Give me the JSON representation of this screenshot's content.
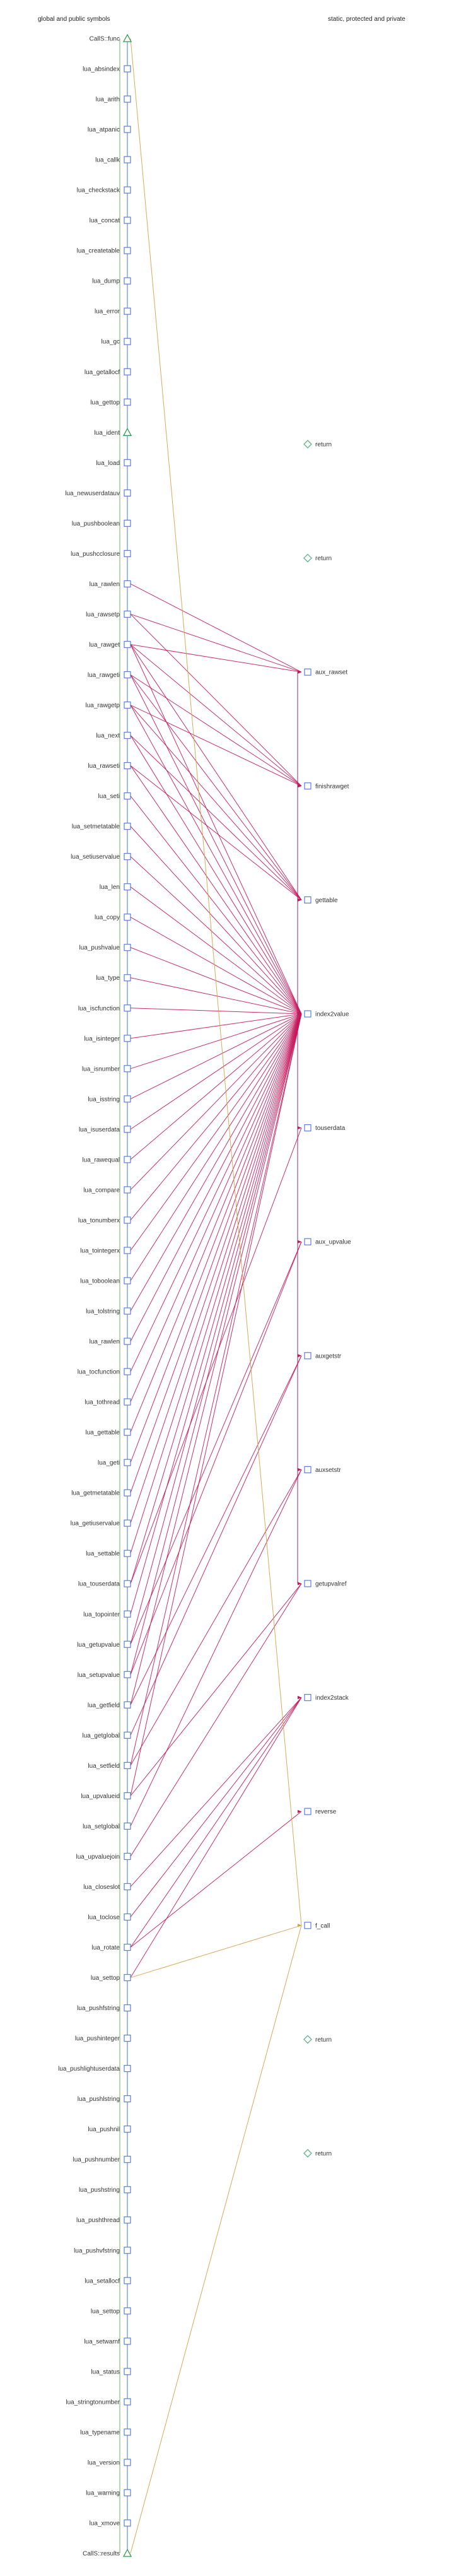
{
  "headers": {
    "left": "global and public symbols",
    "right": "static, protected and private"
  },
  "colors": {
    "edge_local": "#c2185b",
    "edge_call": "#d4a04a",
    "node_box": "#5b7fd6",
    "triangle": "#2e9d4a",
    "diamond": "#5fb48a",
    "spine": "#3a7bd5",
    "guide": "#b7d9b0",
    "bracket": "#a64d8c"
  },
  "left_nodes": [
    {
      "label": "CallS::func",
      "marker": "triangle"
    },
    {
      "label": "lua_absindex",
      "marker": "box"
    },
    {
      "label": "lua_arith",
      "marker": "box"
    },
    {
      "label": "lua_atpanic",
      "marker": "box"
    },
    {
      "label": "lua_callk",
      "marker": "box"
    },
    {
      "label": "lua_checkstack",
      "marker": "box"
    },
    {
      "label": "lua_concat",
      "marker": "box"
    },
    {
      "label": "lua_createtable",
      "marker": "box"
    },
    {
      "label": "lua_dump",
      "marker": "box"
    },
    {
      "label": "lua_error",
      "marker": "box"
    },
    {
      "label": "lua_gc",
      "marker": "box"
    },
    {
      "label": "lua_getallocf",
      "marker": "box"
    },
    {
      "label": "lua_gettop",
      "marker": "box"
    },
    {
      "label": "lua_ident",
      "marker": "triangle"
    },
    {
      "label": "lua_load",
      "marker": "box"
    },
    {
      "label": "lua_newuserdatauv",
      "marker": "box"
    },
    {
      "label": "lua_pushboolean",
      "marker": "box"
    },
    {
      "label": "lua_pushcclosure",
      "marker": "box"
    },
    {
      "label": "lua_rawlen",
      "marker": "box"
    },
    {
      "label": "lua_rawsetp",
      "marker": "box"
    },
    {
      "label": "lua_rawget",
      "marker": "box"
    },
    {
      "label": "lua_rawgeti",
      "marker": "box"
    },
    {
      "label": "lua_rawgetp",
      "marker": "box"
    },
    {
      "label": "lua_next",
      "marker": "box"
    },
    {
      "label": "lua_rawseti",
      "marker": "box"
    },
    {
      "label": "lua_seti",
      "marker": "box"
    },
    {
      "label": "lua_setmetatable",
      "marker": "box"
    },
    {
      "label": "lua_setiuservalue",
      "marker": "box"
    },
    {
      "label": "lua_len",
      "marker": "box"
    },
    {
      "label": "lua_copy",
      "marker": "box"
    },
    {
      "label": "lua_pushvalue",
      "marker": "box"
    },
    {
      "label": "lua_type",
      "marker": "box"
    },
    {
      "label": "lua_iscfunction",
      "marker": "box"
    },
    {
      "label": "lua_isinteger",
      "marker": "box"
    },
    {
      "label": "lua_isnumber",
      "marker": "box"
    },
    {
      "label": "lua_isstring",
      "marker": "box"
    },
    {
      "label": "lua_isuserdata",
      "marker": "box"
    },
    {
      "label": "lua_rawequal",
      "marker": "box"
    },
    {
      "label": "lua_compare",
      "marker": "box"
    },
    {
      "label": "lua_tonumberx",
      "marker": "box"
    },
    {
      "label": "lua_tointegerx",
      "marker": "box"
    },
    {
      "label": "lua_toboolean",
      "marker": "box"
    },
    {
      "label": "lua_tolstring",
      "marker": "box"
    },
    {
      "label": "lua_rawlen",
      "marker": "box"
    },
    {
      "label": "lua_tocfunction",
      "marker": "box"
    },
    {
      "label": "lua_tothread",
      "marker": "box"
    },
    {
      "label": "lua_gettable",
      "marker": "box"
    },
    {
      "label": "lua_geti",
      "marker": "box"
    },
    {
      "label": "lua_getmetatable",
      "marker": "box"
    },
    {
      "label": "lua_getiuservalue",
      "marker": "box"
    },
    {
      "label": "lua_settable",
      "marker": "box"
    },
    {
      "label": "lua_touserdata",
      "marker": "box"
    },
    {
      "label": "lua_topointer",
      "marker": "box"
    },
    {
      "label": "lua_getupvalue",
      "marker": "box"
    },
    {
      "label": "lua_setupvalue",
      "marker": "box"
    },
    {
      "label": "lua_getfield",
      "marker": "box"
    },
    {
      "label": "lua_getglobal",
      "marker": "box"
    },
    {
      "label": "lua_setfield",
      "marker": "box"
    },
    {
      "label": "lua_upvalueid",
      "marker": "box"
    },
    {
      "label": "lua_setglobal",
      "marker": "box"
    },
    {
      "label": "lua_upvaluejoin",
      "marker": "box"
    },
    {
      "label": "lua_closeslot",
      "marker": "box"
    },
    {
      "label": "lua_toclose",
      "marker": "box"
    },
    {
      "label": "lua_rotate",
      "marker": "box"
    },
    {
      "label": "lua_settop",
      "marker": "box"
    },
    {
      "label": "lua_pushfstring",
      "marker": "box"
    },
    {
      "label": "lua_pushinteger",
      "marker": "box"
    },
    {
      "label": "lua_pushlightuserdata",
      "marker": "box"
    },
    {
      "label": "lua_pushlstring",
      "marker": "box"
    },
    {
      "label": "lua_pushnil",
      "marker": "box"
    },
    {
      "label": "lua_pushnumber",
      "marker": "box"
    },
    {
      "label": "lua_pushstring",
      "marker": "box"
    },
    {
      "label": "lua_pushthread",
      "marker": "box"
    },
    {
      "label": "lua_pushvfstring",
      "marker": "box"
    },
    {
      "label": "lua_setallocf",
      "marker": "box"
    },
    {
      "label": "lua_settop",
      "marker": "box"
    },
    {
      "label": "lua_setwarnf",
      "marker": "box"
    },
    {
      "label": "lua_status",
      "marker": "box"
    },
    {
      "label": "lua_stringtonumber",
      "marker": "box"
    },
    {
      "label": "lua_typename",
      "marker": "box"
    },
    {
      "label": "lua_version",
      "marker": "box"
    },
    {
      "label": "lua_warning",
      "marker": "box"
    },
    {
      "label": "lua_xmove",
      "marker": "box"
    },
    {
      "label": "CallS::results",
      "marker": "triangle"
    }
  ],
  "right_nodes": [
    {
      "id": "ret1",
      "label": "return",
      "marker": "diamond"
    },
    {
      "id": "ret2",
      "label": "return",
      "marker": "diamond"
    },
    {
      "id": "aux_rawset",
      "label": "aux_rawset",
      "marker": "box"
    },
    {
      "id": "finishrawget",
      "label": "finishrawget",
      "marker": "box"
    },
    {
      "id": "gettable",
      "label": "gettable",
      "marker": "box"
    },
    {
      "id": "index2value",
      "label": "index2value",
      "marker": "box"
    },
    {
      "id": "touserdata",
      "label": "touserdata",
      "marker": "box"
    },
    {
      "id": "aux_upvalue",
      "label": "aux_upvalue",
      "marker": "box"
    },
    {
      "id": "auxgetstr",
      "label": "auxgetstr",
      "marker": "box"
    },
    {
      "id": "auxsetstr",
      "label": "auxsetstr",
      "marker": "box"
    },
    {
      "id": "getupvalref",
      "label": "getupvalref",
      "marker": "box"
    },
    {
      "id": "index2stack",
      "label": "index2stack",
      "marker": "box"
    },
    {
      "id": "reverse",
      "label": "reverse",
      "marker": "box"
    },
    {
      "id": "f_call",
      "label": "f_call",
      "marker": "box"
    },
    {
      "id": "ret3",
      "label": "return",
      "marker": "diamond"
    },
    {
      "id": "ret4",
      "label": "return",
      "marker": "diamond"
    }
  ],
  "edges": [
    {
      "from": 18,
      "to": "aux_rawset",
      "kind": "local"
    },
    {
      "from": 19,
      "to": "aux_rawset",
      "kind": "local"
    },
    {
      "from": 19,
      "to": "finishrawget",
      "kind": "local"
    },
    {
      "from": 20,
      "to": "aux_rawset",
      "kind": "local"
    },
    {
      "from": 20,
      "to": "finishrawget",
      "kind": "local"
    },
    {
      "from": 20,
      "to": "gettable",
      "kind": "local"
    },
    {
      "from": 20,
      "to": "index2value",
      "kind": "local"
    },
    {
      "from": 21,
      "to": "finishrawget",
      "kind": "local"
    },
    {
      "from": 21,
      "to": "gettable",
      "kind": "local"
    },
    {
      "from": 21,
      "to": "index2value",
      "kind": "local"
    },
    {
      "from": 22,
      "to": "finishrawget",
      "kind": "local"
    },
    {
      "from": 22,
      "to": "gettable",
      "kind": "local"
    },
    {
      "from": 22,
      "to": "index2value",
      "kind": "local"
    },
    {
      "from": 23,
      "to": "gettable",
      "kind": "local"
    },
    {
      "from": 23,
      "to": "index2value",
      "kind": "local"
    },
    {
      "from": 24,
      "to": "gettable",
      "kind": "local"
    },
    {
      "from": 24,
      "to": "index2value",
      "kind": "local"
    },
    {
      "from": 25,
      "to": "index2value",
      "kind": "local"
    },
    {
      "from": 26,
      "to": "index2value",
      "kind": "local"
    },
    {
      "from": 27,
      "to": "index2value",
      "kind": "local"
    },
    {
      "from": 28,
      "to": "index2value",
      "kind": "local"
    },
    {
      "from": 29,
      "to": "index2value",
      "kind": "local"
    },
    {
      "from": 30,
      "to": "index2value",
      "kind": "local"
    },
    {
      "from": 31,
      "to": "index2value",
      "kind": "local"
    },
    {
      "from": 32,
      "to": "index2value",
      "kind": "local"
    },
    {
      "from": 33,
      "to": "index2value",
      "kind": "local"
    },
    {
      "from": 34,
      "to": "index2value",
      "kind": "local"
    },
    {
      "from": 35,
      "to": "index2value",
      "kind": "local"
    },
    {
      "from": 36,
      "to": "index2value",
      "kind": "local"
    },
    {
      "from": 37,
      "to": "index2value",
      "kind": "local"
    },
    {
      "from": 38,
      "to": "index2value",
      "kind": "local"
    },
    {
      "from": 39,
      "to": "index2value",
      "kind": "local"
    },
    {
      "from": 40,
      "to": "index2value",
      "kind": "local"
    },
    {
      "from": 41,
      "to": "index2value",
      "kind": "local"
    },
    {
      "from": 42,
      "to": "index2value",
      "kind": "local"
    },
    {
      "from": 43,
      "to": "index2value",
      "kind": "local"
    },
    {
      "from": 44,
      "to": "index2value",
      "kind": "local"
    },
    {
      "from": 45,
      "to": "index2value",
      "kind": "local"
    },
    {
      "from": 46,
      "to": "index2value",
      "kind": "local"
    },
    {
      "from": 47,
      "to": "index2value",
      "kind": "local"
    },
    {
      "from": 48,
      "to": "index2value",
      "kind": "local"
    },
    {
      "from": 49,
      "to": "index2value",
      "kind": "local"
    },
    {
      "from": 50,
      "to": "index2value",
      "kind": "local"
    },
    {
      "from": 51,
      "to": "index2value",
      "kind": "local"
    },
    {
      "from": 51,
      "to": "touserdata",
      "kind": "local"
    },
    {
      "from": 52,
      "to": "index2value",
      "kind": "local"
    },
    {
      "from": 53,
      "to": "index2value",
      "kind": "local"
    },
    {
      "from": 53,
      "to": "aux_upvalue",
      "kind": "local"
    },
    {
      "from": 54,
      "to": "index2value",
      "kind": "local"
    },
    {
      "from": 54,
      "to": "aux_upvalue",
      "kind": "local"
    },
    {
      "from": 55,
      "to": "index2value",
      "kind": "local"
    },
    {
      "from": 55,
      "to": "auxgetstr",
      "kind": "local"
    },
    {
      "from": 56,
      "to": "auxgetstr",
      "kind": "local"
    },
    {
      "from": 57,
      "to": "index2value",
      "kind": "local"
    },
    {
      "from": 57,
      "to": "auxsetstr",
      "kind": "local"
    },
    {
      "from": 58,
      "to": "index2value",
      "kind": "local"
    },
    {
      "from": 58,
      "to": "getupvalref",
      "kind": "local"
    },
    {
      "from": 59,
      "to": "auxsetstr",
      "kind": "local"
    },
    {
      "from": 60,
      "to": "getupvalref",
      "kind": "local"
    },
    {
      "from": 61,
      "to": "index2stack",
      "kind": "local"
    },
    {
      "from": 62,
      "to": "index2stack",
      "kind": "local"
    },
    {
      "from": 63,
      "to": "index2stack",
      "kind": "local"
    },
    {
      "from": 63,
      "to": "reverse",
      "kind": "local"
    },
    {
      "from": 64,
      "to": "index2stack",
      "kind": "local"
    },
    {
      "from": 64,
      "to": "f_call",
      "kind": "call"
    },
    {
      "from": 0,
      "to": "f_call",
      "kind": "call"
    },
    {
      "from": 83,
      "to": "f_call",
      "kind": "call"
    }
  ]
}
